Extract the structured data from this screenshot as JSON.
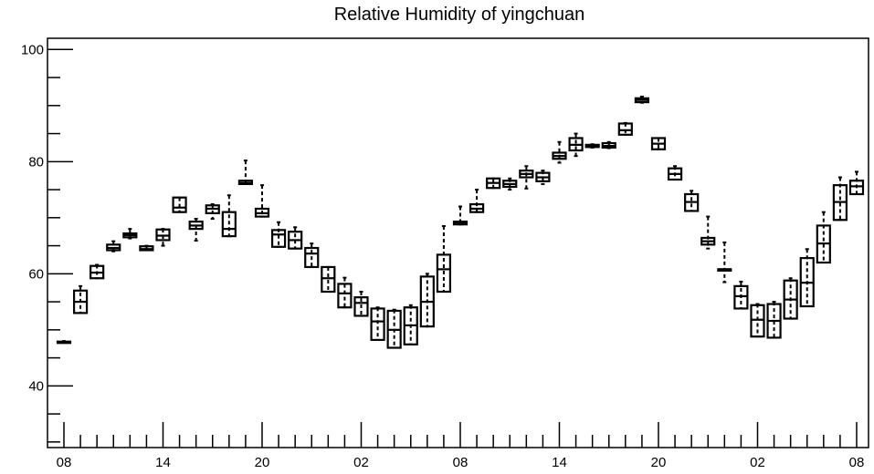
{
  "chart_data": {
    "type": "box",
    "title": "Relative Humidity of yingchuan",
    "xlabel": "",
    "ylabel": "",
    "ylim": [
      29,
      102
    ],
    "y_ticks": [
      40,
      60,
      80,
      100
    ],
    "x_tick_labels": [
      "08",
      "14",
      "20",
      "02",
      "08",
      "14",
      "20",
      "02",
      "08"
    ],
    "x_tick_positions": [
      0,
      6,
      12,
      18,
      24,
      30,
      36,
      42,
      48
    ],
    "boxes": [
      {
        "x": 0,
        "whisker_low": 47.8,
        "q1": 47.8,
        "median": 47.8,
        "q3": 47.9,
        "whisker_high": 48.0
      },
      {
        "x": 1,
        "whisker_low": 53.0,
        "q1": 53.0,
        "median": 55.0,
        "q3": 57.0,
        "whisker_high": 57.8
      },
      {
        "x": 2,
        "whisker_low": 59.2,
        "q1": 59.2,
        "median": 60.2,
        "q3": 61.4,
        "whisker_high": 61.6
      },
      {
        "x": 3,
        "whisker_low": 64.0,
        "q1": 64.2,
        "median": 64.6,
        "q3": 65.2,
        "whisker_high": 65.8
      },
      {
        "x": 4,
        "whisker_low": 66.3,
        "q1": 66.5,
        "median": 66.9,
        "q3": 67.2,
        "whisker_high": 68.0
      },
      {
        "x": 5,
        "whisker_low": 64.2,
        "q1": 64.2,
        "median": 64.4,
        "q3": 64.9,
        "whisker_high": 65.0
      },
      {
        "x": 6,
        "whisker_low": 65.0,
        "q1": 66.0,
        "median": 66.8,
        "q3": 67.9,
        "whisker_high": 68.0
      },
      {
        "x": 7,
        "whisker_low": 71.0,
        "q1": 71.0,
        "median": 71.8,
        "q3": 73.6,
        "whisker_high": 73.6
      },
      {
        "x": 8,
        "whisker_low": 65.9,
        "q1": 68.0,
        "median": 68.6,
        "q3": 69.3,
        "whisker_high": 69.8
      },
      {
        "x": 9,
        "whisker_low": 69.8,
        "q1": 70.8,
        "median": 71.6,
        "q3": 72.2,
        "whisker_high": 72.4
      },
      {
        "x": 10,
        "whisker_low": 66.7,
        "q1": 66.7,
        "median": 68.0,
        "q3": 71.0,
        "whisker_high": 74.0
      },
      {
        "x": 11,
        "whisker_low": 76.0,
        "q1": 76.0,
        "median": 76.2,
        "q3": 76.6,
        "whisker_high": 80.2
      },
      {
        "x": 12,
        "whisker_low": 70.2,
        "q1": 70.2,
        "median": 70.8,
        "q3": 71.6,
        "whisker_high": 75.8
      },
      {
        "x": 13,
        "whisker_low": 64.8,
        "q1": 64.8,
        "median": 67.0,
        "q3": 67.8,
        "whisker_high": 69.2
      },
      {
        "x": 14,
        "whisker_low": 64.5,
        "q1": 64.5,
        "median": 66.0,
        "q3": 67.5,
        "whisker_high": 68.3
      },
      {
        "x": 15,
        "whisker_low": 61.2,
        "q1": 61.2,
        "median": 63.6,
        "q3": 64.6,
        "whisker_high": 65.4
      },
      {
        "x": 16,
        "whisker_low": 56.8,
        "q1": 56.8,
        "median": 59.2,
        "q3": 61.2,
        "whisker_high": 61.2
      },
      {
        "x": 17,
        "whisker_low": 54.0,
        "q1": 54.0,
        "median": 56.5,
        "q3": 58.2,
        "whisker_high": 59.3
      },
      {
        "x": 18,
        "whisker_low": 52.5,
        "q1": 52.5,
        "median": 54.8,
        "q3": 55.8,
        "whisker_high": 56.8
      },
      {
        "x": 19,
        "whisker_low": 48.2,
        "q1": 48.2,
        "median": 51.5,
        "q3": 53.8,
        "whisker_high": 54.0
      },
      {
        "x": 20,
        "whisker_low": 46.8,
        "q1": 46.8,
        "median": 50.0,
        "q3": 53.4,
        "whisker_high": 53.6
      },
      {
        "x": 21,
        "whisker_low": 47.4,
        "q1": 47.4,
        "median": 50.8,
        "q3": 54.0,
        "whisker_high": 54.4
      },
      {
        "x": 22,
        "whisker_low": 50.6,
        "q1": 50.6,
        "median": 55.0,
        "q3": 59.5,
        "whisker_high": 60.0
      },
      {
        "x": 23,
        "whisker_low": 56.8,
        "q1": 56.8,
        "median": 60.8,
        "q3": 63.4,
        "whisker_high": 68.5
      },
      {
        "x": 24,
        "whisker_low": 68.8,
        "q1": 68.8,
        "median": 69.0,
        "q3": 69.3,
        "whisker_high": 72.0
      },
      {
        "x": 25,
        "whisker_low": 71.0,
        "q1": 71.0,
        "median": 71.6,
        "q3": 72.4,
        "whisker_high": 75.0
      },
      {
        "x": 26,
        "whisker_low": 75.3,
        "q1": 75.3,
        "median": 76.2,
        "q3": 77.0,
        "whisker_high": 77.0
      },
      {
        "x": 27,
        "whisker_low": 75.0,
        "q1": 75.5,
        "median": 76.0,
        "q3": 76.6,
        "whisker_high": 77.0
      },
      {
        "x": 28,
        "whisker_low": 75.2,
        "q1": 77.2,
        "median": 77.8,
        "q3": 78.4,
        "whisker_high": 79.2
      },
      {
        "x": 29,
        "whisker_low": 76.0,
        "q1": 76.5,
        "median": 77.2,
        "q3": 78.0,
        "whisker_high": 78.4
      },
      {
        "x": 30,
        "whisker_low": 79.8,
        "q1": 80.5,
        "median": 81.0,
        "q3": 81.6,
        "whisker_high": 83.5
      },
      {
        "x": 31,
        "whisker_low": 81.0,
        "q1": 82.0,
        "median": 83.0,
        "q3": 84.2,
        "whisker_high": 85.0
      },
      {
        "x": 32,
        "whisker_low": 82.5,
        "q1": 82.6,
        "median": 82.8,
        "q3": 83.0,
        "whisker_high": 83.1
      },
      {
        "x": 33,
        "whisker_low": 82.4,
        "q1": 82.5,
        "median": 82.8,
        "q3": 83.3,
        "whisker_high": 83.5
      },
      {
        "x": 34,
        "whisker_low": 84.8,
        "q1": 84.8,
        "median": 85.6,
        "q3": 86.8,
        "whisker_high": 86.9
      },
      {
        "x": 35,
        "whisker_low": 90.5,
        "q1": 90.6,
        "median": 91.0,
        "q3": 91.3,
        "whisker_high": 91.6
      },
      {
        "x": 36,
        "whisker_low": 82.2,
        "q1": 82.2,
        "median": 83.2,
        "q3": 84.2,
        "whisker_high": 84.2
      },
      {
        "x": 37,
        "whisker_low": 76.8,
        "q1": 76.8,
        "median": 77.8,
        "q3": 78.8,
        "whisker_high": 79.2
      },
      {
        "x": 38,
        "whisker_low": 71.2,
        "q1": 71.2,
        "median": 72.8,
        "q3": 74.2,
        "whisker_high": 74.8
      },
      {
        "x": 39,
        "whisker_low": 64.5,
        "q1": 65.2,
        "median": 65.8,
        "q3": 66.4,
        "whisker_high": 70.2
      },
      {
        "x": 40,
        "whisker_low": 58.5,
        "q1": 60.8,
        "median": 60.8,
        "q3": 60.8,
        "whisker_high": 65.6
      },
      {
        "x": 41,
        "whisker_low": 53.8,
        "q1": 53.8,
        "median": 56.0,
        "q3": 57.8,
        "whisker_high": 58.6
      },
      {
        "x": 42,
        "whisker_low": 48.8,
        "q1": 48.8,
        "median": 51.8,
        "q3": 54.4,
        "whisker_high": 54.6
      },
      {
        "x": 43,
        "whisker_low": 48.6,
        "q1": 48.6,
        "median": 51.6,
        "q3": 54.6,
        "whisker_high": 55.0
      },
      {
        "x": 44,
        "whisker_low": 52.0,
        "q1": 52.0,
        "median": 55.4,
        "q3": 58.8,
        "whisker_high": 59.2
      },
      {
        "x": 45,
        "whisker_low": 54.2,
        "q1": 54.2,
        "median": 58.4,
        "q3": 62.8,
        "whisker_high": 64.4
      },
      {
        "x": 46,
        "whisker_low": 62.0,
        "q1": 62.0,
        "median": 65.4,
        "q3": 68.6,
        "whisker_high": 71.0
      },
      {
        "x": 47,
        "whisker_low": 69.6,
        "q1": 69.6,
        "median": 72.8,
        "q3": 75.8,
        "whisker_high": 77.2
      },
      {
        "x": 48,
        "whisker_low": 74.2,
        "q1": 74.2,
        "median": 75.6,
        "q3": 76.6,
        "whisker_high": 78.2
      }
    ],
    "grid": false,
    "legend": "none"
  }
}
